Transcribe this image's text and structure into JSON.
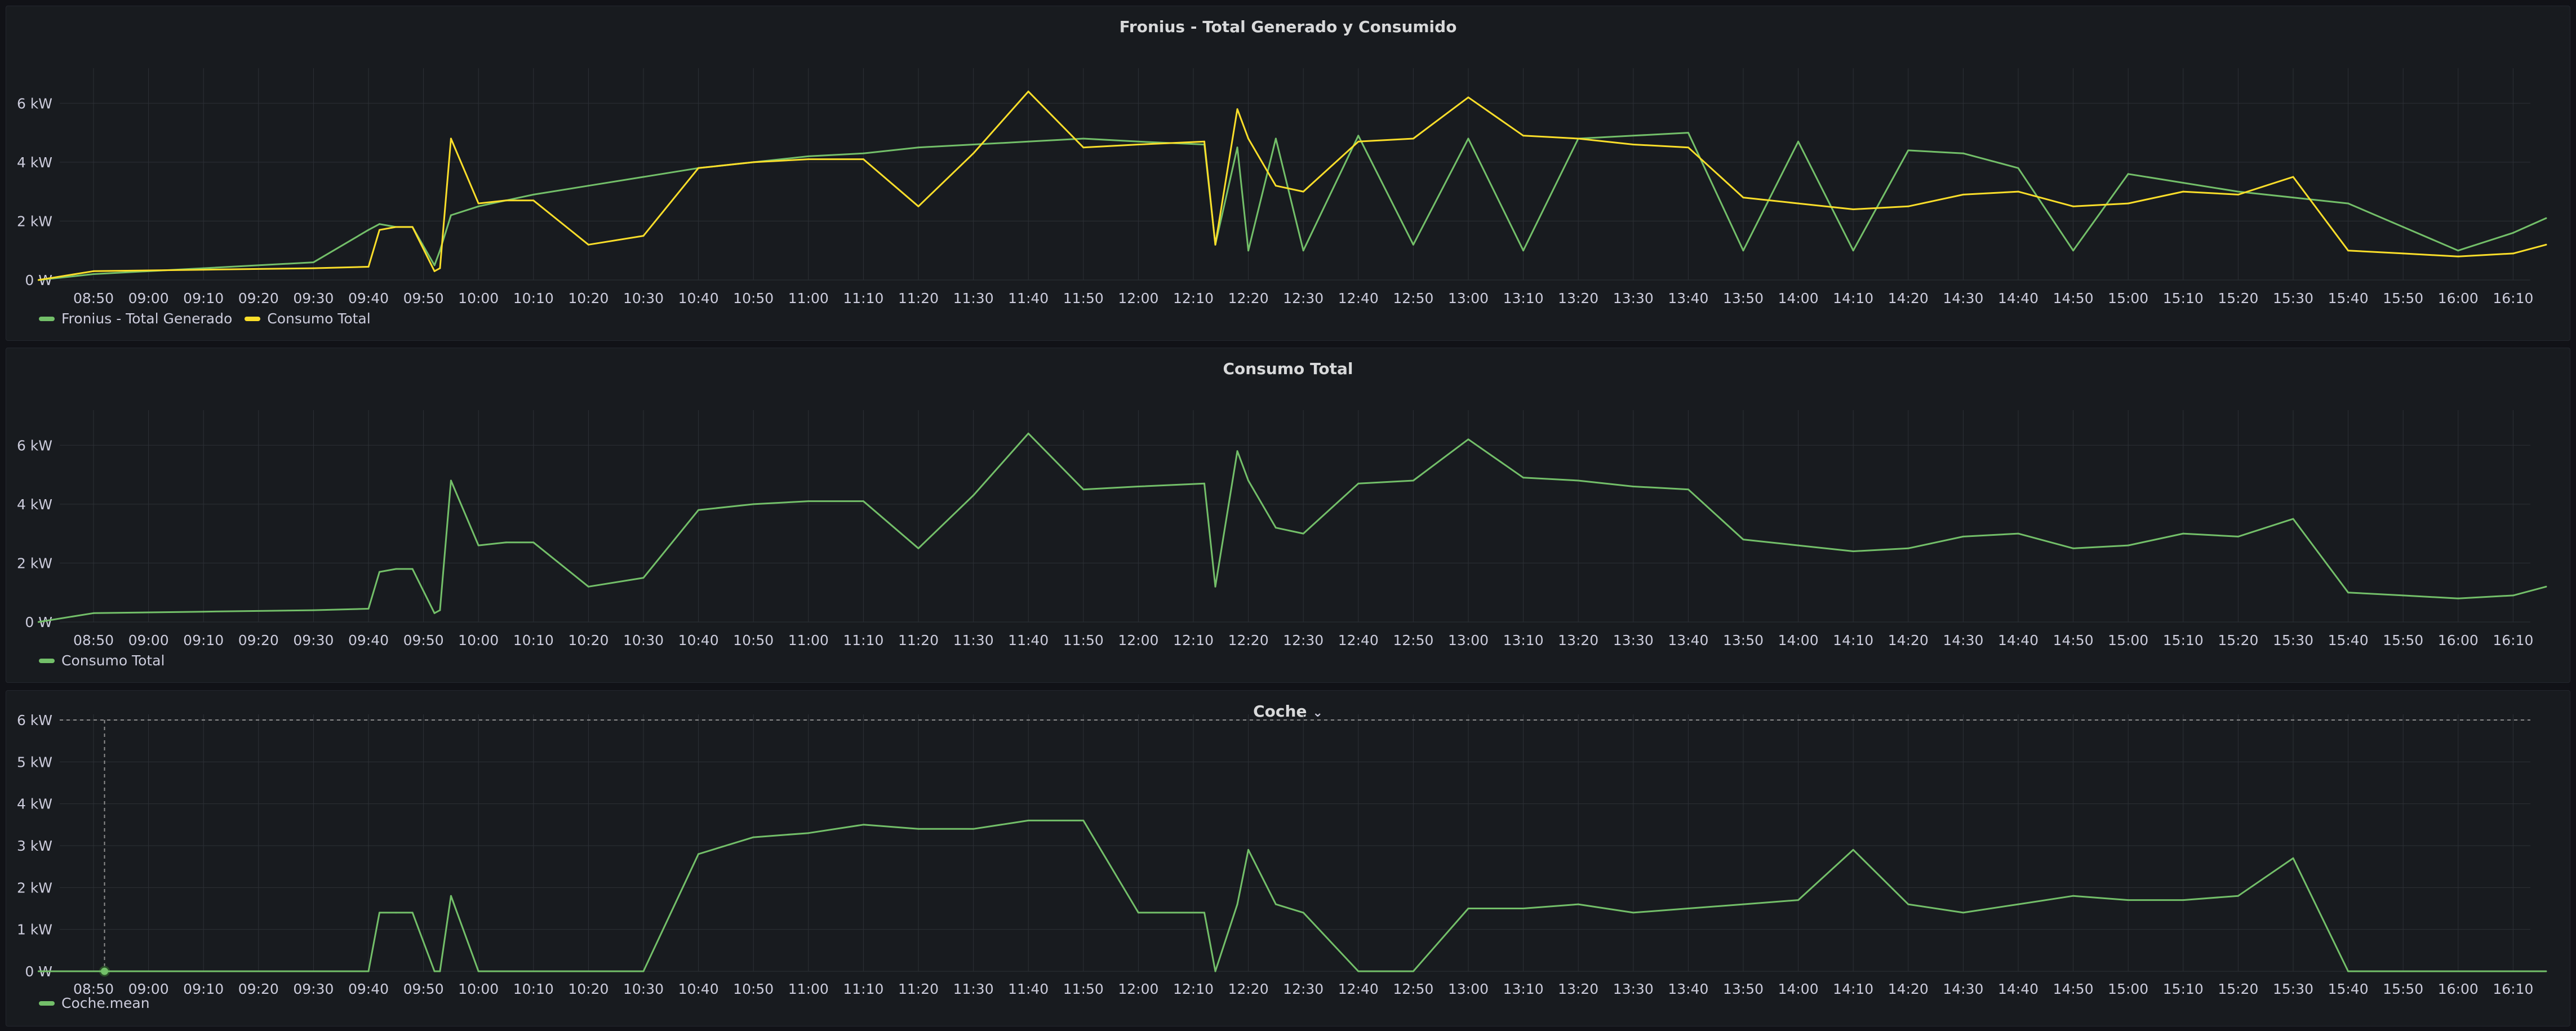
{
  "colors": {
    "background": "#111217",
    "panel": "#181b1f",
    "grid": "#2c3036",
    "green": "#73bf69",
    "yellow": "#fade2a",
    "axis_text": "#ccccdc"
  },
  "x_ticks": [
    "08:50",
    "09:00",
    "09:10",
    "09:20",
    "09:30",
    "09:40",
    "09:50",
    "10:00",
    "10:10",
    "10:20",
    "10:30",
    "10:40",
    "10:50",
    "11:00",
    "11:10",
    "11:20",
    "11:30",
    "11:40",
    "11:50",
    "12:00",
    "12:10",
    "12:20",
    "12:30",
    "12:40",
    "12:50",
    "13:00",
    "13:10",
    "13:20",
    "13:30",
    "13:40",
    "13:50",
    "14:00",
    "14:10",
    "14:20",
    "14:30",
    "14:40",
    "14:50",
    "15:00",
    "15:10",
    "15:20",
    "15:30",
    "15:40",
    "15:50",
    "16:00",
    "16:10"
  ],
  "panels": [
    {
      "title": "Fronius - Total Generado y Consumido",
      "has_dropdown": false,
      "legend": [
        {
          "label": "Fronius - Total Generado",
          "color": "#73bf69"
        },
        {
          "label": "Consumo Total",
          "color": "#fade2a"
        }
      ]
    },
    {
      "title": "Consumo Total",
      "has_dropdown": false,
      "legend": [
        {
          "label": "Consumo Total",
          "color": "#73bf69"
        }
      ]
    },
    {
      "title": "Coche",
      "has_dropdown": true,
      "dropdown_icon": "chevron-down-icon",
      "legend": [
        {
          "label": "Coche.mean",
          "color": "#73bf69"
        }
      ]
    }
  ],
  "chart_data": [
    {
      "type": "line",
      "title": "Fronius - Total Generado y Consumido",
      "xlabel": "",
      "ylabel": "",
      "unit": "kW",
      "x_range": [
        "08:40",
        "16:16"
      ],
      "ylim": [
        0,
        7
      ],
      "y_ticks": [
        "0 W",
        "2 kW",
        "4 kW",
        "6 kW"
      ],
      "grid": true,
      "legend_position": "bottom-left",
      "x_minutes_from_08_40": [
        0,
        10,
        30,
        50,
        60,
        62,
        65,
        68,
        72,
        73,
        75,
        80,
        85,
        90,
        100,
        110,
        120,
        130,
        140,
        150,
        160,
        170,
        180,
        190,
        200,
        212,
        214,
        218,
        220,
        225,
        230,
        240,
        250,
        260,
        270,
        280,
        290,
        300,
        310,
        320,
        330,
        340,
        350,
        360,
        370,
        380,
        390,
        400,
        410,
        420,
        430,
        440,
        450,
        456
      ],
      "series": [
        {
          "name": "Fronius - Total Generado",
          "values": [
            0.0,
            0.2,
            0.4,
            0.6,
            1.7,
            1.9,
            1.8,
            1.8,
            0.5,
            1.0,
            2.2,
            2.5,
            2.7,
            2.9,
            3.2,
            3.5,
            3.8,
            4.0,
            4.2,
            4.3,
            4.5,
            4.6,
            4.7,
            4.8,
            4.7,
            4.6,
            1.2,
            4.5,
            1.0,
            4.8,
            1.0,
            4.9,
            1.2,
            4.8,
            1.0,
            4.8,
            4.9,
            5.0,
            1.0,
            4.7,
            1.0,
            4.4,
            4.3,
            3.8,
            1.0,
            3.6,
            3.3,
            3.0,
            2.8,
            2.6,
            1.8,
            1.0,
            1.6,
            2.1
          ]
        },
        {
          "name": "Consumo Total",
          "values": [
            0.0,
            0.3,
            0.35,
            0.4,
            0.45,
            1.7,
            1.8,
            1.8,
            0.3,
            0.4,
            4.8,
            2.6,
            2.7,
            2.7,
            1.2,
            1.5,
            3.8,
            4.0,
            4.1,
            4.1,
            2.5,
            4.3,
            6.4,
            4.5,
            4.6,
            4.7,
            1.2,
            5.8,
            4.8,
            3.2,
            3.0,
            4.7,
            4.8,
            6.2,
            4.9,
            4.8,
            4.6,
            4.5,
            2.8,
            2.6,
            2.4,
            2.5,
            2.9,
            3.0,
            2.5,
            2.6,
            3.0,
            2.9,
            3.5,
            1.0,
            0.9,
            0.8,
            0.9,
            1.2
          ]
        }
      ]
    },
    {
      "type": "line",
      "title": "Consumo Total",
      "xlabel": "",
      "ylabel": "",
      "unit": "kW",
      "x_range": [
        "08:40",
        "16:16"
      ],
      "ylim": [
        0,
        7
      ],
      "y_ticks": [
        "0 W",
        "2 kW",
        "4 kW",
        "6 kW"
      ],
      "grid": true,
      "legend_position": "bottom-left",
      "x_minutes_from_08_40": [
        0,
        10,
        30,
        50,
        60,
        62,
        65,
        68,
        72,
        73,
        75,
        80,
        85,
        90,
        100,
        110,
        120,
        130,
        140,
        150,
        160,
        170,
        180,
        190,
        200,
        212,
        214,
        218,
        220,
        225,
        230,
        240,
        250,
        260,
        270,
        280,
        290,
        300,
        310,
        320,
        330,
        340,
        350,
        360,
        370,
        380,
        390,
        400,
        410,
        420,
        430,
        440,
        450,
        456
      ],
      "series": [
        {
          "name": "Consumo Total",
          "values": [
            0.0,
            0.3,
            0.35,
            0.4,
            0.45,
            1.7,
            1.8,
            1.8,
            0.3,
            0.4,
            4.8,
            2.6,
            2.7,
            2.7,
            1.2,
            1.5,
            3.8,
            4.0,
            4.1,
            4.1,
            2.5,
            4.3,
            6.4,
            4.5,
            4.6,
            4.7,
            1.2,
            5.8,
            4.8,
            3.2,
            3.0,
            4.7,
            4.8,
            6.2,
            4.9,
            4.8,
            4.6,
            4.5,
            2.8,
            2.6,
            2.4,
            2.5,
            2.9,
            3.0,
            2.5,
            2.6,
            3.0,
            2.9,
            3.5,
            1.0,
            0.9,
            0.8,
            0.9,
            1.2
          ]
        }
      ]
    },
    {
      "type": "line",
      "title": "Coche",
      "xlabel": "",
      "ylabel": "",
      "unit": "kW",
      "x_range": [
        "08:40",
        "16:16"
      ],
      "ylim": [
        0,
        6
      ],
      "y_ticks": [
        "0 W",
        "1 kW",
        "2 kW",
        "3 kW",
        "4 kW",
        "5 kW",
        "6 kW"
      ],
      "grid": true,
      "legend_position": "bottom-left",
      "threshold_line": 6,
      "marker_at": "08:52",
      "x_minutes_from_08_40": [
        0,
        10,
        30,
        50,
        60,
        62,
        65,
        68,
        72,
        73,
        75,
        80,
        85,
        90,
        100,
        110,
        120,
        130,
        140,
        150,
        160,
        170,
        180,
        190,
        200,
        212,
        214,
        218,
        220,
        225,
        230,
        240,
        250,
        260,
        270,
        280,
        290,
        300,
        310,
        320,
        330,
        340,
        350,
        360,
        370,
        380,
        390,
        400,
        410,
        420,
        430,
        440,
        450,
        456
      ],
      "series": [
        {
          "name": "Coche.mean",
          "values": [
            0.0,
            0.0,
            0.0,
            0.0,
            0.0,
            1.4,
            1.4,
            1.4,
            0.0,
            0.0,
            1.8,
            0.0,
            0.0,
            0.0,
            0.0,
            0.0,
            2.8,
            3.2,
            3.3,
            3.5,
            3.4,
            3.4,
            3.6,
            3.6,
            1.4,
            1.4,
            0.0,
            1.6,
            2.9,
            1.6,
            1.4,
            0.0,
            0.0,
            1.5,
            1.5,
            1.6,
            1.4,
            1.5,
            1.6,
            1.7,
            2.9,
            1.6,
            1.4,
            1.6,
            1.8,
            1.7,
            1.7,
            1.8,
            2.7,
            0.0,
            0.0,
            0.0,
            0.0,
            0.0
          ]
        }
      ]
    }
  ]
}
